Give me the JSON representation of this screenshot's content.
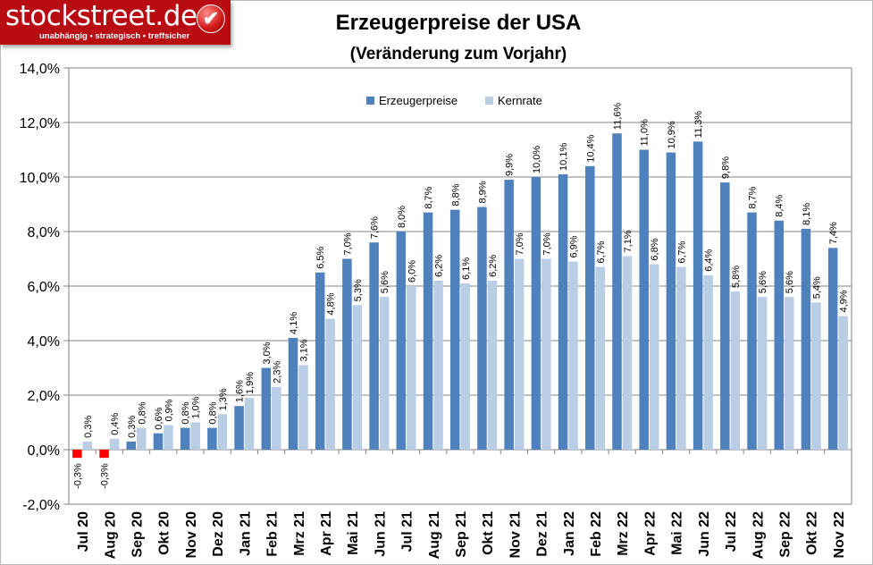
{
  "logo": {
    "brand": "stockstreet.de",
    "tagline": "unabhängig • strategisch • treffsicher"
  },
  "chart_data": {
    "type": "bar",
    "title": "Erzeugerpreise der USA",
    "subtitle": "(Veränderung zum Vorjahr)",
    "xlabel": "",
    "ylabel": "",
    "ylim": [
      -2,
      14
    ],
    "yticks": [
      "-2,0%",
      "0,0%",
      "2,0%",
      "4,0%",
      "6,0%",
      "8,0%",
      "10,0%",
      "12,0%",
      "14,0%"
    ],
    "grid": true,
    "legend": "top-center",
    "categories": [
      "Jul 20",
      "Aug 20",
      "Sep 20",
      "Okt 20",
      "Nov 20",
      "Dez 20",
      "Jan 21",
      "Feb 21",
      "Mrz 21",
      "Apr 21",
      "Mai 21",
      "Jun 21",
      "Jul 21",
      "Aug 21",
      "Sep 21",
      "Okt 21",
      "Nov 21",
      "Dez 21",
      "Jan 22",
      "Feb 22",
      "Mrz 22",
      "Apr 22",
      "Mai 22",
      "Jun 22",
      "Jul 22",
      "Aug 22",
      "Sep 22",
      "Okt 22",
      "Nov 22"
    ],
    "series": [
      {
        "name": "Erzeugerpreise",
        "color": "#4f81bd",
        "negative_color": "#ff0000",
        "values": [
          -0.3,
          -0.3,
          0.3,
          0.6,
          0.8,
          0.8,
          1.6,
          3.0,
          4.1,
          6.5,
          7.0,
          7.6,
          8.0,
          8.7,
          8.8,
          8.9,
          9.9,
          10.0,
          10.1,
          10.4,
          11.6,
          11.0,
          10.9,
          11.3,
          9.8,
          8.7,
          8.4,
          8.1,
          7.4
        ]
      },
      {
        "name": "Kernrate",
        "color": "#b9cde5",
        "values": [
          0.3,
          0.4,
          0.8,
          0.9,
          1.0,
          1.3,
          1.9,
          2.3,
          3.1,
          4.8,
          5.3,
          5.6,
          6.0,
          6.2,
          6.1,
          6.2,
          7.0,
          7.0,
          6.9,
          6.7,
          7.1,
          6.8,
          6.7,
          6.4,
          5.8,
          5.6,
          5.6,
          5.4,
          4.9
        ]
      }
    ]
  }
}
